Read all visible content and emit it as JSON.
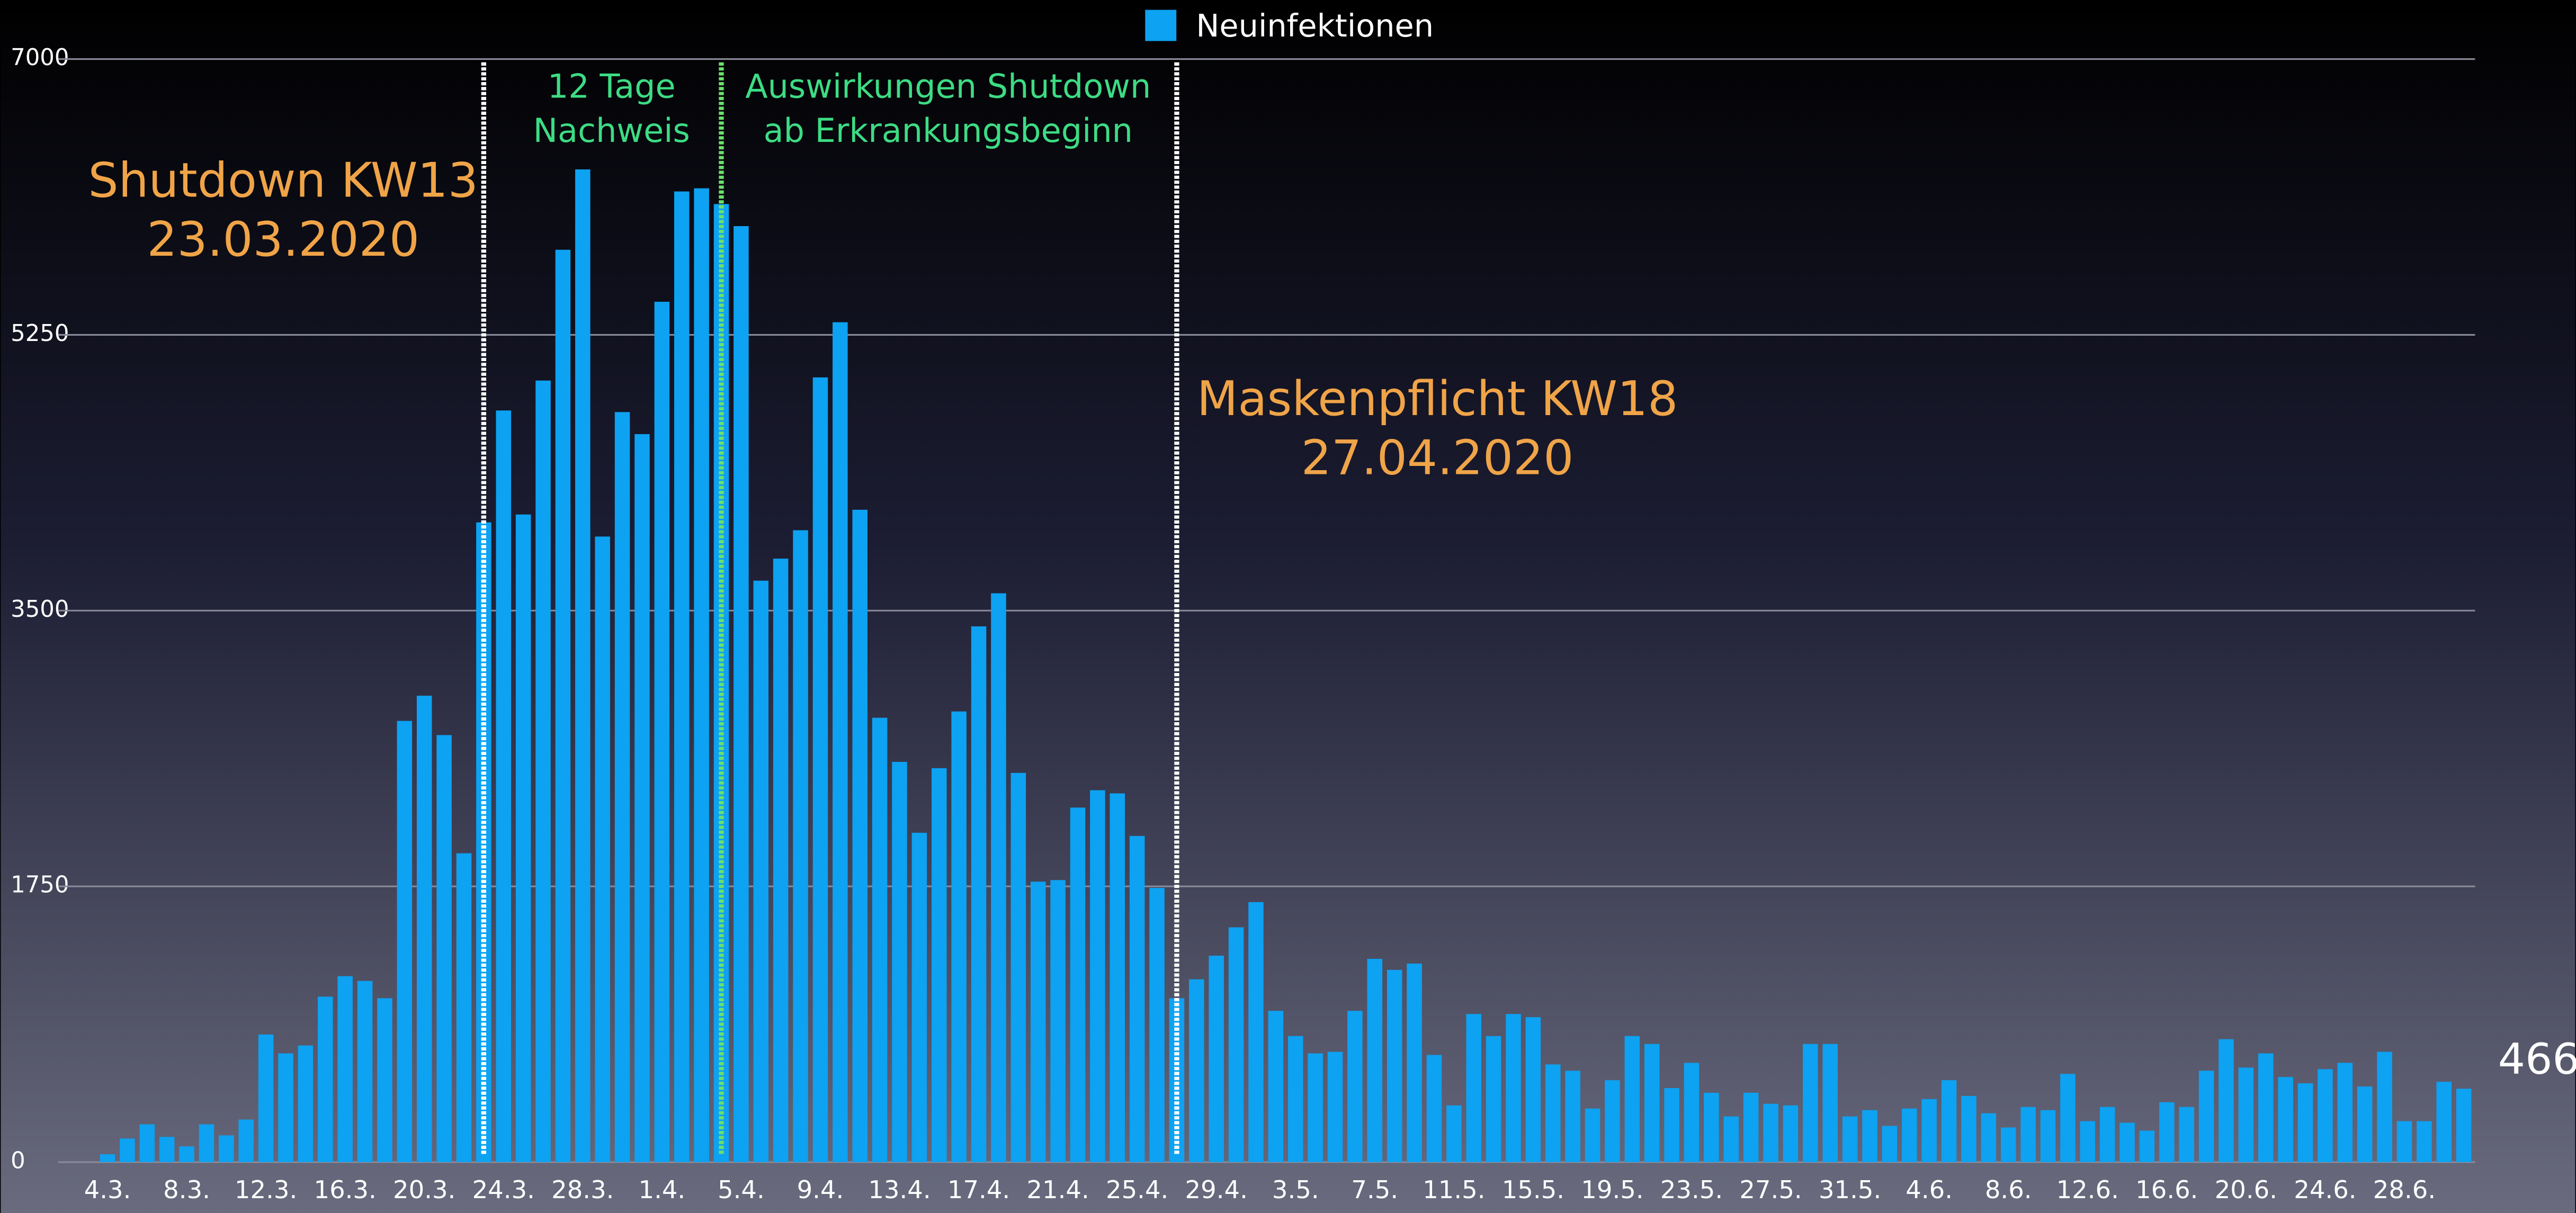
{
  "chart_data": {
    "type": "bar",
    "series": [
      {
        "name": "Neuinfektionen",
        "color": "#0da2f2",
        "values": [
          50,
          150,
          240,
          160,
          100,
          240,
          170,
          270,
          810,
          690,
          740,
          1050,
          1180,
          1150,
          1040,
          2800,
          2960,
          2710,
          1960,
          4060,
          4770,
          4110,
          4960,
          5790,
          6300,
          3970,
          4760,
          4620,
          5460,
          6160,
          6180,
          6080,
          5940,
          3690,
          3830,
          4010,
          4980,
          5330,
          4140,
          2820,
          2540,
          2090,
          2500,
          2860,
          3400,
          3610,
          2470,
          1780,
          1790,
          2250,
          2360,
          2340,
          2070,
          1740,
          1040,
          1160,
          1310,
          1490,
          1650,
          960,
          800,
          690,
          700,
          960,
          1290,
          1220,
          1260,
          680,
          360,
          940,
          800,
          940,
          920,
          620,
          580,
          340,
          520,
          800,
          750,
          470,
          630,
          440,
          290,
          440,
          370,
          360,
          750,
          750,
          290,
          330,
          230,
          340,
          400,
          520,
          420,
          310,
          220,
          350,
          330,
          560,
          260,
          350,
          250,
          200,
          380,
          350,
          580,
          780,
          600,
          690,
          540,
          500,
          590,
          630,
          480,
          700,
          260,
          260,
          510,
          466
        ]
      }
    ],
    "categories": [
      "4.3.",
      null,
      null,
      null,
      "8.3.",
      null,
      null,
      null,
      "12.3.",
      null,
      null,
      null,
      "16.3.",
      null,
      null,
      null,
      "20.3.",
      null,
      null,
      null,
      "24.3.",
      null,
      null,
      null,
      "28.3.",
      null,
      null,
      null,
      "1.4.",
      null,
      null,
      null,
      "5.4.",
      null,
      null,
      null,
      "9.4.",
      null,
      null,
      null,
      "13.4.",
      null,
      null,
      null,
      "17.4.",
      null,
      null,
      null,
      "21.4.",
      null,
      null,
      null,
      "25.4.",
      null,
      null,
      null,
      "29.4.",
      null,
      null,
      null,
      "3.5.",
      null,
      null,
      null,
      "7.5.",
      null,
      null,
      null,
      "11.5.",
      null,
      null,
      null,
      "15.5.",
      null,
      null,
      null,
      "19.5.",
      null,
      null,
      null,
      "23.5.",
      null,
      null,
      null,
      "27.5.",
      null,
      null,
      null,
      "31.5.",
      null,
      null,
      null,
      "4.6.",
      null,
      null,
      null,
      "8.6.",
      null,
      null,
      null,
      "12.6.",
      null,
      null,
      null,
      "16.6.",
      null,
      null,
      null,
      "20.6.",
      null,
      null,
      null,
      "24.6.",
      null,
      null,
      null,
      "28.6.",
      null,
      null,
      null
    ],
    "ylim": [
      0,
      7000
    ],
    "yticks": [
      0,
      1750,
      3500,
      5250,
      7000
    ],
    "grid": true,
    "legend": "top",
    "annotations": [
      [
        "Shutdown KW13",
        "23.03.2020"
      ],
      [
        "12 Tage",
        "Nachweis"
      ],
      [
        "Auswirkungen Shutdown",
        "ab Erkrankungsbeginn"
      ],
      [
        "Maskenpflicht KW18",
        "27.04.2020"
      ]
    ]
  }
}
